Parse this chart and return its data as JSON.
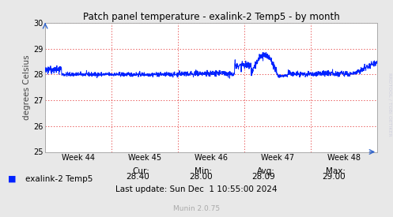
{
  "title": "Patch panel temperature - exalink-2 Temp5 - by month",
  "ylabel": "degrees Celsius",
  "ylim": [
    25,
    30
  ],
  "yticks": [
    25,
    26,
    27,
    28,
    29,
    30
  ],
  "week_labels": [
    "Week 44",
    "Week 45",
    "Week 46",
    "Week 47",
    "Week 48"
  ],
  "legend_label": "exalink-2 Temp5",
  "cur": "28.40",
  "min": "28.00",
  "avg": "28.09",
  "max": "29.00",
  "last_update": "Last update: Sun Dec  1 10:55:00 2024",
  "munin_version": "Munin 2.0.75",
  "rrdtool_label": "RRDTOOL / TOBI OETIKER",
  "line_color": "#0022ff",
  "bg_color": "#e8e8e8",
  "plot_bg_color": "#ffffff",
  "title_color": "#000000",
  "border_color": "#aaaaaa"
}
